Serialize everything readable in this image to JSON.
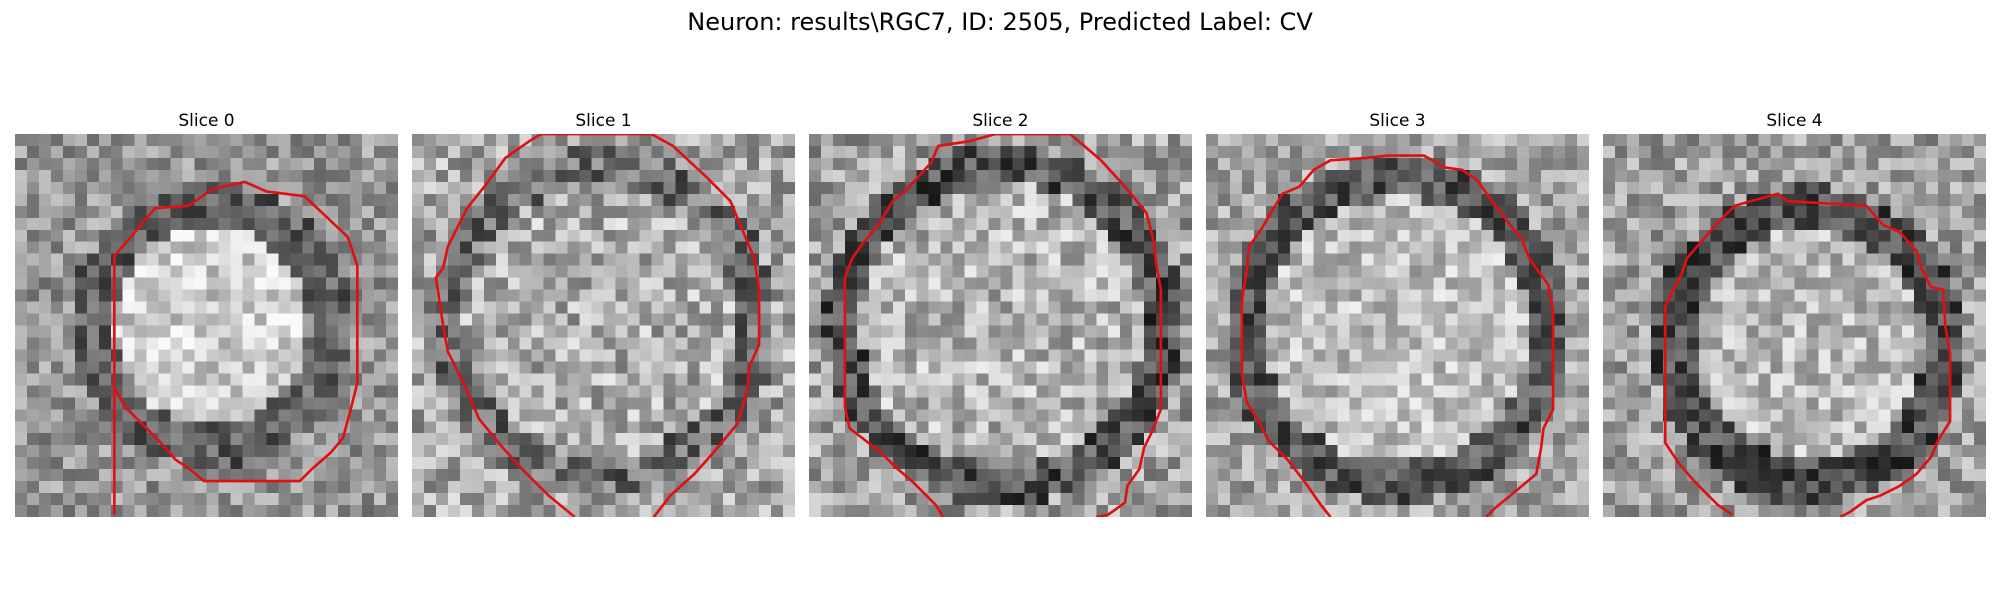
{
  "figure": {
    "title": "Neuron: results\\RGC7, ID: 2505, Predicted Label: CV"
  },
  "slices": [
    {
      "label": "Slice 0",
      "contour_color": "#e01010"
    },
    {
      "label": "Slice 1",
      "contour_color": "#e01010"
    },
    {
      "label": "Slice 2",
      "contour_color": "#e01010"
    },
    {
      "label": "Slice 3",
      "contour_color": "#e01010"
    },
    {
      "label": "Slice 4",
      "contour_color": "#e01010"
    }
  ],
  "colormap": "gray"
}
